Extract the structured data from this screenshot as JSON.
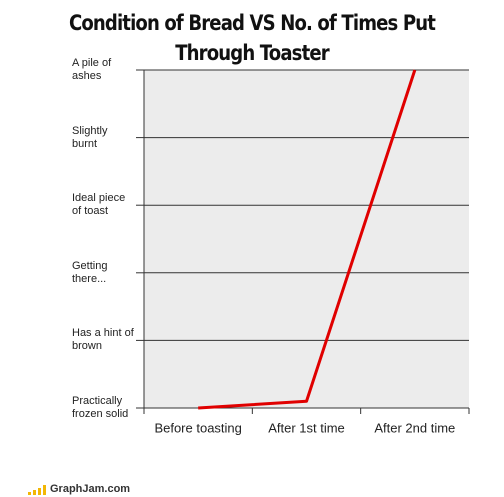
{
  "chart_data": {
    "type": "line",
    "title": "Condition of Bread VS No. of Times Put Through Toaster",
    "categories": [
      "Before toasting",
      "After 1st time",
      "After 2nd time"
    ],
    "values": [
      0,
      0.1,
      5
    ],
    "color": "#e00000",
    "ylim": [
      0,
      5
    ],
    "yticks": [
      {
        "value": 0,
        "label": "Practically frozen solid"
      },
      {
        "value": 1,
        "label": "Has a hint of brown"
      },
      {
        "value": 2,
        "label": "Getting there..."
      },
      {
        "value": 3,
        "label": "Ideal piece of toast"
      },
      {
        "value": 4,
        "label": "Slightly burnt"
      },
      {
        "value": 5,
        "label": "A pile of ashes"
      }
    ],
    "grid": true
  },
  "footer": "GraphJam.com"
}
